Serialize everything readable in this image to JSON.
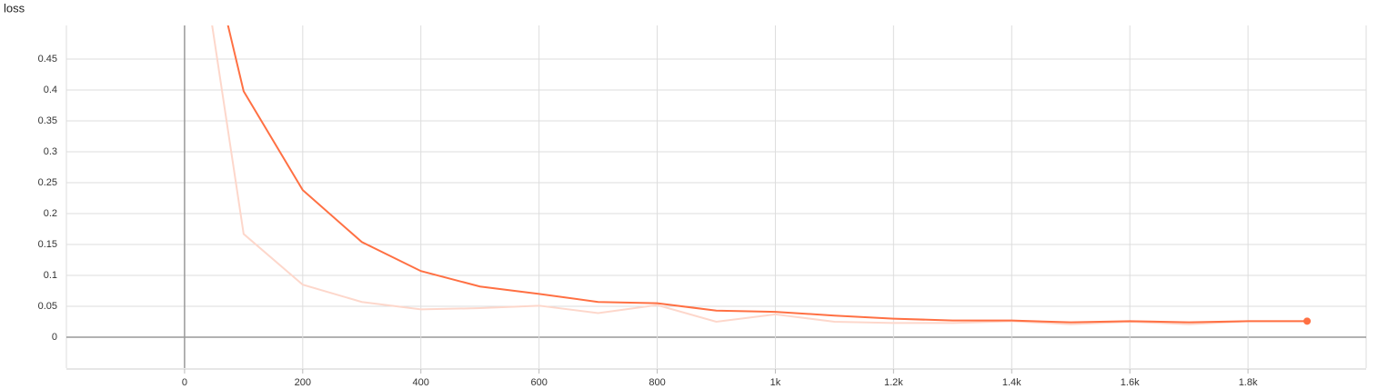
{
  "chart_data": {
    "type": "line",
    "title": "loss",
    "x": [
      0,
      100,
      200,
      300,
      400,
      500,
      600,
      700,
      800,
      900,
      1000,
      1100,
      1200,
      1300,
      1400,
      1500,
      1600,
      1700,
      1800,
      1900
    ],
    "series": [
      {
        "color": "#ff7043",
        "values": [
          0.8,
          0.398,
          0.238,
          0.154,
          0.107,
          0.082,
          0.07,
          0.057,
          0.055,
          0.043,
          0.041,
          0.035,
          0.03,
          0.027,
          0.027,
          0.024,
          0.026,
          0.024,
          0.026,
          0.026
        ]
      },
      {
        "color": "#fdd7cb",
        "values": [
          0.8,
          0.167,
          0.085,
          0.057,
          0.045,
          0.047,
          0.051,
          0.039,
          0.052,
          0.025,
          0.037,
          0.025,
          0.023,
          0.023,
          0.026,
          0.021,
          0.025,
          0.021,
          0.026,
          0.026
        ]
      }
    ],
    "xlim": [
      -200,
      2000
    ],
    "xticks": [
      0,
      200,
      400,
      600,
      800,
      {
        "value": 1000,
        "label": "1k"
      },
      {
        "value": 1200,
        "label": "1.2k"
      },
      {
        "value": 1400,
        "label": "1.4k"
      },
      {
        "value": 1600,
        "label": "1.6k"
      },
      {
        "value": 1800,
        "label": "1.8k"
      }
    ],
    "ylim": [
      -0.05,
      0.5
    ],
    "yticks": [
      0,
      0.05,
      0.1,
      0.15,
      0.2,
      0.25,
      0.3,
      0.35,
      0.4,
      0.45
    ],
    "grid": true
  }
}
